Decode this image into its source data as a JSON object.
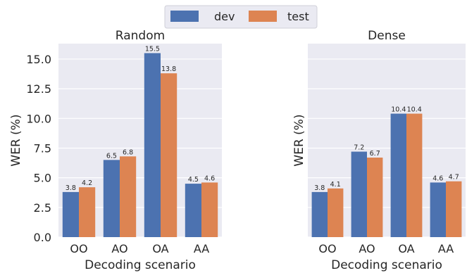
{
  "chart_data": [
    {
      "type": "bar",
      "title": "Random",
      "xlabel": "Decoding scenario",
      "ylabel": "WER (%)",
      "ylim": [
        0,
        16.3
      ],
      "yticks": [
        "0.0",
        "2.5",
        "5.0",
        "7.5",
        "10.0",
        "12.5",
        "15.0"
      ],
      "categories": [
        "OO",
        "AO",
        "OA",
        "AA"
      ],
      "series": [
        {
          "name": "dev",
          "values": [
            3.8,
            6.5,
            15.5,
            4.5
          ],
          "labels": [
            "3.8",
            "6.5",
            "15.5",
            "4.5"
          ]
        },
        {
          "name": "test",
          "values": [
            4.2,
            6.8,
            13.8,
            4.6
          ],
          "labels": [
            "4.2",
            "6.8",
            "13.8",
            "4.6"
          ]
        }
      ],
      "grid": true
    },
    {
      "type": "bar",
      "title": "Dense",
      "xlabel": "Decoding scenario",
      "ylabel": "WER (%)",
      "ylim": [
        0,
        16.3
      ],
      "categories": [
        "OO",
        "AO",
        "OA",
        "AA"
      ],
      "series": [
        {
          "name": "dev",
          "values": [
            3.8,
            7.2,
            10.4,
            4.6
          ],
          "labels": [
            "3.8",
            "7.2",
            "10.4",
            "4.6"
          ]
        },
        {
          "name": "test",
          "values": [
            4.1,
            6.7,
            10.4,
            4.7
          ],
          "labels": [
            "4.1",
            "6.7",
            "10.4",
            "4.7"
          ]
        }
      ],
      "grid": true
    }
  ],
  "legend": {
    "placement": "top-center",
    "entries": [
      "dev",
      "test"
    ]
  },
  "colors": {
    "dev": "#4c72b0",
    "test": "#dd8452",
    "panel_bg": "#eaeaf2",
    "grid": "#ffffff"
  }
}
